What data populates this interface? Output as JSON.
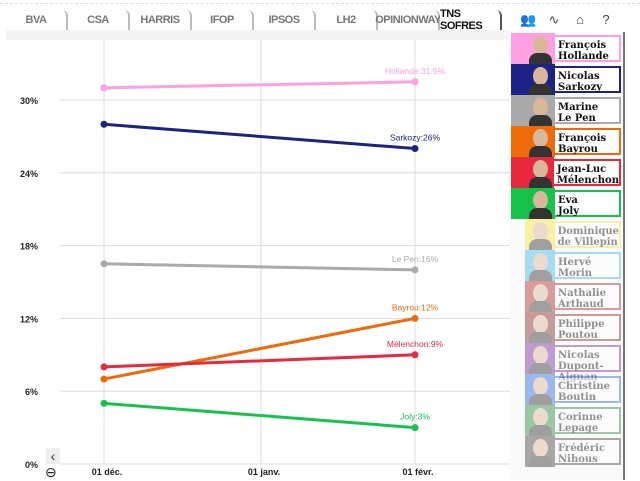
{
  "tabs": [
    "BVA",
    "CSA",
    "HARRIS",
    "IFOP",
    "IPSOS",
    "LH2",
    "OPINIONWAY",
    "TNS SOFRES"
  ],
  "active_tab": "TNS SOFRES",
  "toolbar_icons": [
    "candidates-icon",
    "chart-icon",
    "home-icon",
    "help-icon"
  ],
  "toolbar_glyphs": [
    "👥",
    "∿",
    "⌂",
    "?"
  ],
  "candidates": [
    {
      "first": "François",
      "last": "Hollande",
      "color": "#ff9ee0",
      "active": true
    },
    {
      "first": "Nicolas",
      "last": "Sarkozy",
      "color": "#1c2384",
      "active": true
    },
    {
      "first": "Marine",
      "last": "Le Pen",
      "color": "#aaaaaa",
      "active": true
    },
    {
      "first": "François",
      "last": "Bayrou",
      "color": "#ee6a0a",
      "active": true
    },
    {
      "first": "Jean-Luc",
      "last": "Mélenchon",
      "color": "#e8283c",
      "active": true
    },
    {
      "first": "Eva",
      "last": "Joly",
      "color": "#17c24a",
      "active": true
    },
    {
      "first": "Dominique",
      "last": "de Villepin",
      "color": "#f5e640",
      "active": false
    },
    {
      "first": "Hervé",
      "last": "Morin",
      "color": "#3fb8e8",
      "active": false
    },
    {
      "first": "Nathalie",
      "last": "Arthaud",
      "color": "#b52a2a",
      "active": false
    },
    {
      "first": "Philippe",
      "last": "Poutou",
      "color": "#8c2a2a",
      "active": false
    },
    {
      "first": "Nicolas",
      "last": "Dupont-Aignan",
      "color": "#7a2aa0",
      "active": false
    },
    {
      "first": "Christine",
      "last": "Boutin",
      "color": "#2a6ae8",
      "active": false
    },
    {
      "first": "Corinne",
      "last": "Lepage",
      "color": "#2a8a40",
      "active": false
    },
    {
      "first": "Frédéric",
      "last": "Nihous",
      "color": "#444444",
      "active": false
    }
  ],
  "chart_data": {
    "type": "line",
    "x_ticks": [
      "01 déc.",
      "01 janv.",
      "01 févr."
    ],
    "y_ticks": [
      "0%",
      "6%",
      "12%",
      "18%",
      "24%",
      "30%"
    ],
    "ylim": [
      0,
      34
    ],
    "grid": true,
    "x": [
      "01 déc.",
      "01 févr."
    ],
    "series": [
      {
        "name": "Hollande",
        "color": "#ff9ee0",
        "values": [
          31,
          31.5
        ],
        "label": "Hollande:31.5%"
      },
      {
        "name": "Sarkozy",
        "color": "#1c2384",
        "values": [
          28,
          26
        ],
        "label": "Sarkozy:26%"
      },
      {
        "name": "Le Pen",
        "color": "#aaaaaa",
        "values": [
          16.5,
          16
        ],
        "label": "Le Pen:16%"
      },
      {
        "name": "Bayrou",
        "color": "#ee6a0a",
        "values": [
          7,
          12
        ],
        "label": "Bayrou:12%"
      },
      {
        "name": "Mélenchon",
        "color": "#e8283c",
        "values": [
          8,
          9
        ],
        "label": "Mélenchon:9%"
      },
      {
        "name": "Joly",
        "color": "#17c24a",
        "values": [
          5,
          3
        ],
        "label": "Joly:3%"
      }
    ]
  },
  "controls": {
    "scroll_left": "‹",
    "zoom_out": "⊖"
  }
}
